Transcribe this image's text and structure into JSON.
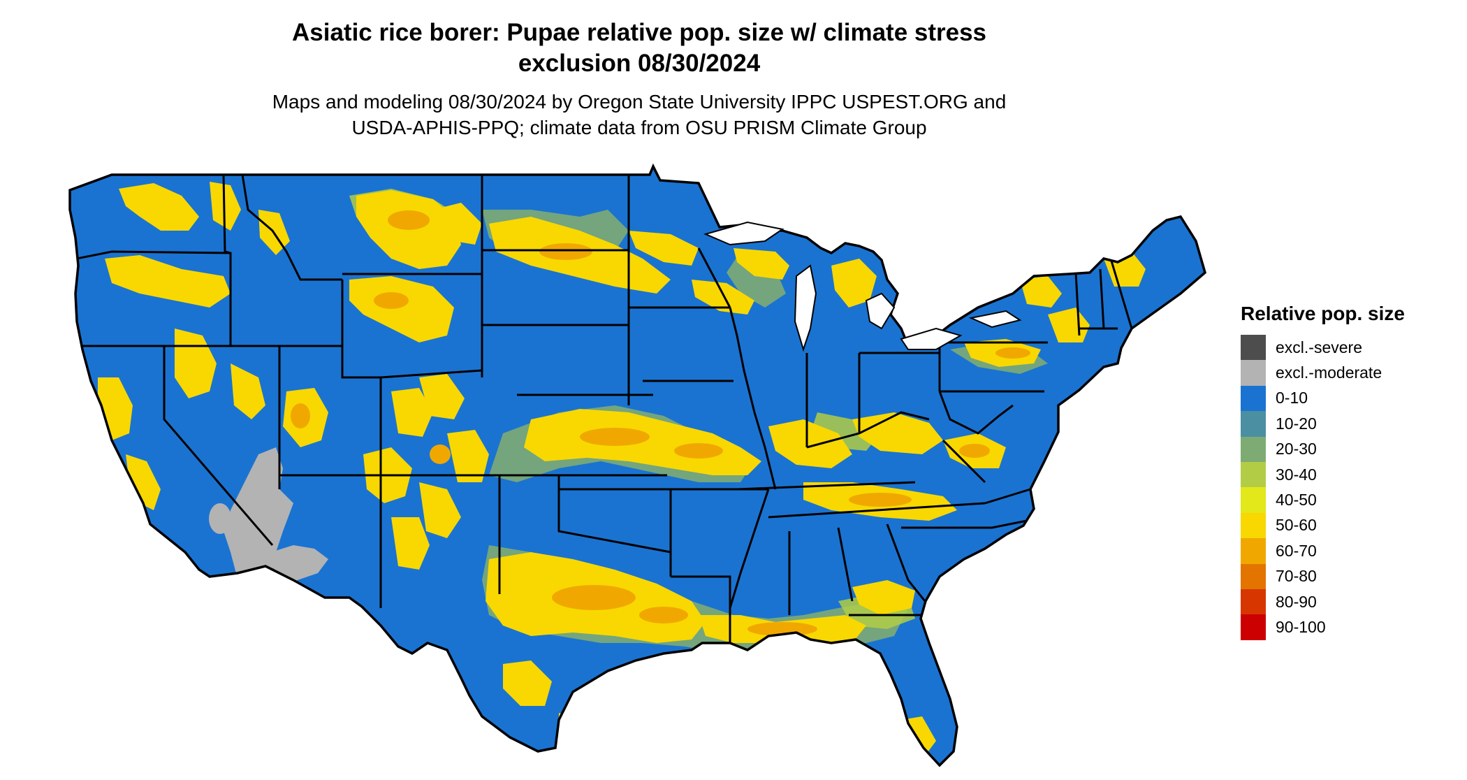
{
  "title": {
    "line1": "Asiatic rice borer: Pupae relative pop. size w/ climate stress",
    "line2": "exclusion 08/30/2024"
  },
  "subtitle": {
    "line1": "Maps and modeling 08/30/2024 by Oregon State University IPPC USPEST.ORG and",
    "line2": "USDA-APHIS-PPQ; climate data from OSU PRISM Climate Group"
  },
  "legend": {
    "title": "Relative pop. size",
    "items": [
      {
        "label": "excl.-severe",
        "color": "#4d4d4d"
      },
      {
        "label": "excl.-moderate",
        "color": "#b3b3b3"
      },
      {
        "label": "0-10",
        "color": "#1a73d1"
      },
      {
        "label": "10-20",
        "color": "#4b8fa3"
      },
      {
        "label": "20-30",
        "color": "#7eab73"
      },
      {
        "label": "30-40",
        "color": "#b2cd45"
      },
      {
        "label": "40-50",
        "color": "#e2e81a"
      },
      {
        "label": "50-60",
        "color": "#f8d800"
      },
      {
        "label": "60-70",
        "color": "#f0a800"
      },
      {
        "label": "70-80",
        "color": "#e37400"
      },
      {
        "label": "80-90",
        "color": "#d83600"
      },
      {
        "label": "90-100",
        "color": "#cc0000"
      }
    ]
  },
  "map": {
    "region": "Contiguous United States",
    "base_color": "#1a73d1",
    "border_color": "#000000"
  }
}
